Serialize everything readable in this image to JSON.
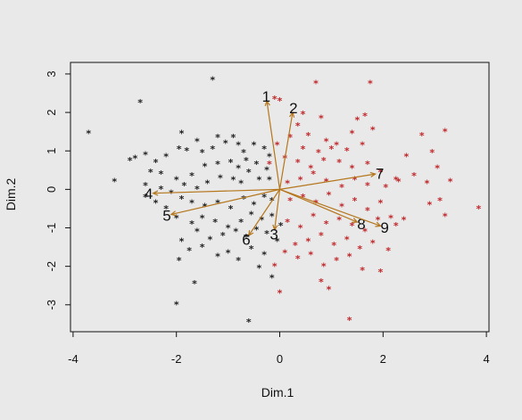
{
  "chart_data": {
    "type": "scatter",
    "title": "",
    "xlabel": "Dim.1",
    "ylabel": "Dim.2",
    "xlim": [
      -4.05,
      4.05
    ],
    "ylim": [
      -3.7,
      3.3
    ],
    "x_ticks": [
      -4,
      -2,
      0,
      2,
      4
    ],
    "y_ticks": [
      -3,
      -2,
      -1,
      0,
      1,
      2,
      3
    ],
    "x_tick_labels": [
      "-4",
      "-2",
      "0",
      "2",
      "4"
    ],
    "y_tick_labels": [
      "-3",
      "-2",
      "-1",
      "0",
      "1",
      "2",
      "3"
    ],
    "grid": false,
    "legend": "none",
    "marker": "*",
    "colors": {
      "plot_bg": "#e9e9e9",
      "frame": "#111111",
      "group_a": "#222222",
      "group_b": "#c0282b",
      "arrow": "#b5761c"
    },
    "series": [
      {
        "color": "#222222",
        "points": [
          [
            -1.3,
            2.9
          ],
          [
            -2.7,
            2.3
          ],
          [
            -3.7,
            1.5
          ],
          [
            -1.9,
            1.5
          ],
          [
            -1.6,
            1.3
          ],
          [
            -1.2,
            1.4
          ],
          [
            -0.9,
            1.4
          ],
          [
            -2.9,
            0.8
          ],
          [
            -2.8,
            0.85
          ],
          [
            -2.6,
            0.95
          ],
          [
            -2.4,
            0.75
          ],
          [
            -2.2,
            0.9
          ],
          [
            -1.95,
            1.1
          ],
          [
            -1.8,
            1.05
          ],
          [
            -1.5,
            1.0
          ],
          [
            -1.3,
            1.1
          ],
          [
            -1.05,
            1.25
          ],
          [
            -0.8,
            1.2
          ],
          [
            -0.7,
            1.0
          ],
          [
            -0.5,
            1.2
          ],
          [
            -0.3,
            1.1
          ],
          [
            -0.2,
            0.9
          ],
          [
            -3.2,
            0.25
          ],
          [
            -2.5,
            0.5
          ],
          [
            -2.3,
            0.45
          ],
          [
            -2.0,
            0.3
          ],
          [
            -1.7,
            0.4
          ],
          [
            -1.45,
            0.65
          ],
          [
            -1.2,
            0.7
          ],
          [
            -0.95,
            0.75
          ],
          [
            -0.8,
            0.6
          ],
          [
            -0.65,
            0.8
          ],
          [
            -0.45,
            0.7
          ],
          [
            -0.25,
            0.55
          ],
          [
            -2.6,
            0.15
          ],
          [
            -2.3,
            0.05
          ],
          [
            -2.1,
            -0.05
          ],
          [
            -1.85,
            0.15
          ],
          [
            -1.6,
            0.05
          ],
          [
            -1.4,
            0.2
          ],
          [
            -1.15,
            0.35
          ],
          [
            -0.9,
            0.3
          ],
          [
            -0.75,
            0.2
          ],
          [
            -0.6,
            0.5
          ],
          [
            -0.4,
            0.3
          ],
          [
            -0.2,
            0.3
          ],
          [
            -2.6,
            -0.15
          ],
          [
            -2.4,
            -0.3
          ],
          [
            -2.2,
            -0.45
          ],
          [
            -1.9,
            -0.2
          ],
          [
            -1.7,
            -0.3
          ],
          [
            -1.45,
            -0.4
          ],
          [
            -1.2,
            -0.3
          ],
          [
            -0.95,
            -0.45
          ],
          [
            -0.7,
            -0.2
          ],
          [
            -0.5,
            -0.35
          ],
          [
            -0.3,
            -0.15
          ],
          [
            -0.15,
            -0.25
          ],
          [
            -2.0,
            -0.7
          ],
          [
            -1.7,
            -0.85
          ],
          [
            -1.5,
            -0.7
          ],
          [
            -1.25,
            -0.8
          ],
          [
            -1.0,
            -0.95
          ],
          [
            -0.75,
            -0.8
          ],
          [
            -0.55,
            -0.6
          ],
          [
            -0.35,
            -0.75
          ],
          [
            -0.15,
            -0.65
          ],
          [
            -1.9,
            -1.3
          ],
          [
            -1.6,
            -1.05
          ],
          [
            -1.35,
            -1.25
          ],
          [
            -1.1,
            -1.15
          ],
          [
            -0.85,
            -1.05
          ],
          [
            -0.65,
            -1.2
          ],
          [
            -0.45,
            -1.0
          ],
          [
            -0.25,
            -1.1
          ],
          [
            -1.95,
            -1.8
          ],
          [
            -1.75,
            -1.55
          ],
          [
            -1.5,
            -1.45
          ],
          [
            -1.2,
            -1.7
          ],
          [
            -1.0,
            -1.6
          ],
          [
            -0.8,
            -1.8
          ],
          [
            -0.55,
            -1.5
          ],
          [
            -0.3,
            -1.65
          ],
          [
            -1.65,
            -2.4
          ],
          [
            -0.4,
            -2.0
          ],
          [
            -0.15,
            -2.25
          ],
          [
            -2.0,
            -2.95
          ],
          [
            -0.6,
            -3.4
          ],
          [
            -0.05,
            -1.3
          ],
          [
            0.02,
            -0.9
          ]
        ]
      },
      {
        "color": "#c0282b",
        "points": [
          [
            -0.1,
            2.4
          ],
          [
            0.0,
            2.35
          ],
          [
            0.7,
            2.8
          ],
          [
            1.75,
            2.8
          ],
          [
            0.45,
            2.0
          ],
          [
            0.8,
            1.9
          ],
          [
            1.5,
            1.85
          ],
          [
            1.65,
            1.95
          ],
          [
            1.4,
            1.5
          ],
          [
            1.8,
            1.6
          ],
          [
            0.35,
            1.7
          ],
          [
            0.55,
            1.45
          ],
          [
            0.9,
            1.3
          ],
          [
            1.1,
            1.2
          ],
          [
            0.2,
            1.4
          ],
          [
            -0.05,
            1.2
          ],
          [
            0.45,
            1.1
          ],
          [
            0.75,
            1.0
          ],
          [
            1.0,
            1.1
          ],
          [
            1.3,
            1.05
          ],
          [
            1.6,
            1.2
          ],
          [
            2.75,
            1.45
          ],
          [
            3.2,
            1.55
          ],
          [
            2.45,
            0.9
          ],
          [
            2.95,
            1.0
          ],
          [
            3.05,
            0.6
          ],
          [
            -0.2,
            0.7
          ],
          [
            0.1,
            0.85
          ],
          [
            0.35,
            0.75
          ],
          [
            0.6,
            0.6
          ],
          [
            0.85,
            0.8
          ],
          [
            1.15,
            0.75
          ],
          [
            1.4,
            0.6
          ],
          [
            1.7,
            0.7
          ],
          [
            1.95,
            0.5
          ],
          [
            2.25,
            0.3
          ],
          [
            2.6,
            0.4
          ],
          [
            2.85,
            0.2
          ],
          [
            3.3,
            0.25
          ],
          [
            0.15,
            0.2
          ],
          [
            0.4,
            0.3
          ],
          [
            0.65,
            0.45
          ],
          [
            0.9,
            0.25
          ],
          [
            1.2,
            0.1
          ],
          [
            1.45,
            0.3
          ],
          [
            1.7,
            0.15
          ],
          [
            2.05,
            0.1
          ],
          [
            2.3,
            0.25
          ],
          [
            3.1,
            -0.25
          ],
          [
            2.9,
            -0.35
          ],
          [
            3.85,
            -0.45
          ],
          [
            0.2,
            -0.25
          ],
          [
            0.45,
            -0.15
          ],
          [
            0.7,
            -0.3
          ],
          [
            0.95,
            -0.1
          ],
          [
            1.2,
            -0.4
          ],
          [
            1.45,
            -0.25
          ],
          [
            1.7,
            -0.5
          ],
          [
            1.95,
            -0.3
          ],
          [
            2.15,
            -0.7
          ],
          [
            2.4,
            -0.75
          ],
          [
            3.2,
            -0.65
          ],
          [
            0.15,
            -0.8
          ],
          [
            0.4,
            -0.95
          ],
          [
            0.65,
            -0.65
          ],
          [
            0.9,
            -0.85
          ],
          [
            1.15,
            -0.75
          ],
          [
            1.4,
            -0.9
          ],
          [
            1.65,
            -1.05
          ],
          [
            1.9,
            -0.75
          ],
          [
            2.25,
            -0.9
          ],
          [
            0.3,
            -1.4
          ],
          [
            0.55,
            -1.3
          ],
          [
            0.8,
            -1.15
          ],
          [
            1.05,
            -1.4
          ],
          [
            1.3,
            -1.25
          ],
          [
            1.55,
            -1.5
          ],
          [
            1.8,
            -1.35
          ],
          [
            2.1,
            -1.55
          ],
          [
            0.1,
            -1.6
          ],
          [
            0.35,
            -1.75
          ],
          [
            0.6,
            -1.65
          ],
          [
            0.85,
            -1.95
          ],
          [
            1.1,
            -1.8
          ],
          [
            1.35,
            -1.7
          ],
          [
            1.6,
            -2.05
          ],
          [
            1.95,
            -2.1
          ],
          [
            0.8,
            -2.35
          ],
          [
            0.0,
            -2.65
          ],
          [
            -0.1,
            -1.95
          ],
          [
            0.95,
            -2.55
          ],
          [
            1.35,
            -3.35
          ]
        ]
      }
    ],
    "vectors": [
      {
        "label": "1",
        "x": -0.25,
        "y": 2.3
      },
      {
        "label": "2",
        "x": 0.25,
        "y": 2.0
      },
      {
        "label": "3",
        "x": -0.1,
        "y": -1.05
      },
      {
        "label": "4",
        "x": -2.45,
        "y": -0.1
      },
      {
        "label": "5",
        "x": -2.1,
        "y": -0.65
      },
      {
        "label": "6",
        "x": -0.6,
        "y": -1.2
      },
      {
        "label": "7",
        "x": 1.85,
        "y": 0.4
      },
      {
        "label": "8",
        "x": 1.5,
        "y": -0.85
      },
      {
        "label": "9",
        "x": 1.95,
        "y": -0.95
      }
    ]
  }
}
